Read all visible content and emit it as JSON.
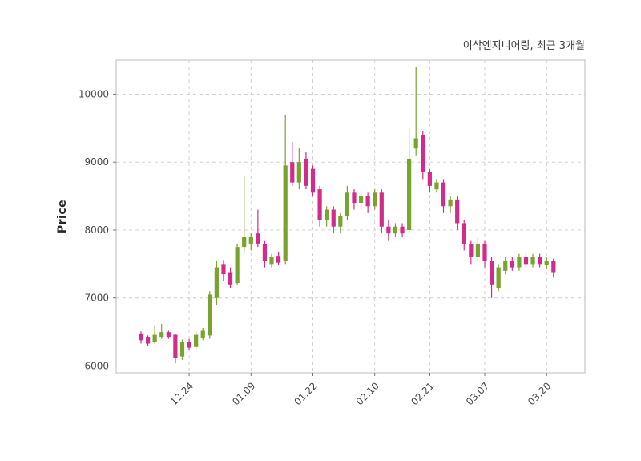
{
  "chart_data": {
    "type": "candlestick",
    "title": "이삭엔지니어링, 최근 3개월",
    "ylabel": "Price",
    "ylim": [
      5900,
      10500
    ],
    "y_ticks": [
      6000,
      7000,
      8000,
      9000,
      10000
    ],
    "x_tick_labels": [
      "12.24",
      "01.09",
      "01.22",
      "02.10",
      "02.21",
      "03.07",
      "03.20"
    ],
    "x_tick_indices": [
      7,
      16,
      25,
      34,
      42,
      50,
      59
    ],
    "grid": true,
    "legend": "none",
    "colors": {
      "up": "#76a42c",
      "down": "#d12c8c",
      "grid": "#cccccc",
      "axis_border": "#c4c4c4",
      "tick_label": "#4a4a4a",
      "title_text": "#3b3b3b"
    },
    "candles": [
      [
        6480,
        6510,
        6330,
        6380
      ],
      [
        6430,
        6450,
        6300,
        6330
      ],
      [
        6350,
        6600,
        6330,
        6460
      ],
      [
        6430,
        6620,
        6400,
        6500
      ],
      [
        6500,
        6520,
        6400,
        6430
      ],
      [
        6460,
        6470,
        6040,
        6120
      ],
      [
        6140,
        6390,
        6090,
        6350
      ],
      [
        6360,
        6400,
        6240,
        6270
      ],
      [
        6280,
        6500,
        6260,
        6460
      ],
      [
        6420,
        6560,
        6380,
        6520
      ],
      [
        6450,
        7100,
        6400,
        7050
      ],
      [
        7000,
        7550,
        6900,
        7450
      ],
      [
        7500,
        7560,
        7250,
        7350
      ],
      [
        7380,
        7450,
        7150,
        7200
      ],
      [
        7220,
        7800,
        7200,
        7750
      ],
      [
        7750,
        8800,
        7650,
        7900
      ],
      [
        7800,
        7950,
        7700,
        7900
      ],
      [
        7950,
        8300,
        7750,
        7800
      ],
      [
        7800,
        7850,
        7450,
        7550
      ],
      [
        7500,
        7650,
        7450,
        7600
      ],
      [
        7620,
        7680,
        7480,
        7520
      ],
      [
        7550,
        9700,
        7500,
        8950
      ],
      [
        9000,
        9300,
        8650,
        8700
      ],
      [
        8700,
        9200,
        8600,
        9000
      ],
      [
        9050,
        9150,
        8600,
        8650
      ],
      [
        8900,
        8950,
        8500,
        8550
      ],
      [
        8600,
        8650,
        8050,
        8150
      ],
      [
        8150,
        8350,
        8050,
        8300
      ],
      [
        8300,
        8350,
        7950,
        8050
      ],
      [
        8050,
        8250,
        7950,
        8200
      ],
      [
        8200,
        8650,
        8150,
        8550
      ],
      [
        8550,
        8600,
        8300,
        8400
      ],
      [
        8400,
        8550,
        8300,
        8500
      ],
      [
        8500,
        8550,
        8250,
        8350
      ],
      [
        8350,
        8600,
        8300,
        8550
      ],
      [
        8550,
        8600,
        7950,
        8050
      ],
      [
        8050,
        8150,
        7850,
        7950
      ],
      [
        7950,
        8100,
        7900,
        8050
      ],
      [
        8050,
        8100,
        7900,
        7950
      ],
      [
        8000,
        9500,
        7950,
        9050
      ],
      [
        9200,
        10400,
        9100,
        9350
      ],
      [
        9400,
        9450,
        8750,
        8850
      ],
      [
        8850,
        8900,
        8550,
        8650
      ],
      [
        8600,
        8750,
        8550,
        8700
      ],
      [
        8700,
        8750,
        8250,
        8350
      ],
      [
        8350,
        8500,
        8250,
        8450
      ],
      [
        8450,
        8500,
        8000,
        8100
      ],
      [
        8100,
        8150,
        7700,
        7800
      ],
      [
        7800,
        7850,
        7500,
        7600
      ],
      [
        7600,
        7900,
        7550,
        7800
      ],
      [
        7800,
        7850,
        7450,
        7550
      ],
      [
        7550,
        7600,
        7000,
        7200
      ],
      [
        7150,
        7500,
        7100,
        7450
      ],
      [
        7400,
        7600,
        7350,
        7550
      ],
      [
        7550,
        7600,
        7400,
        7450
      ],
      [
        7450,
        7650,
        7400,
        7600
      ],
      [
        7600,
        7650,
        7450,
        7500
      ],
      [
        7500,
        7650,
        7450,
        7600
      ],
      [
        7600,
        7650,
        7450,
        7500
      ],
      [
        7480,
        7600,
        7420,
        7550
      ],
      [
        7550,
        7580,
        7300,
        7380
      ]
    ]
  }
}
